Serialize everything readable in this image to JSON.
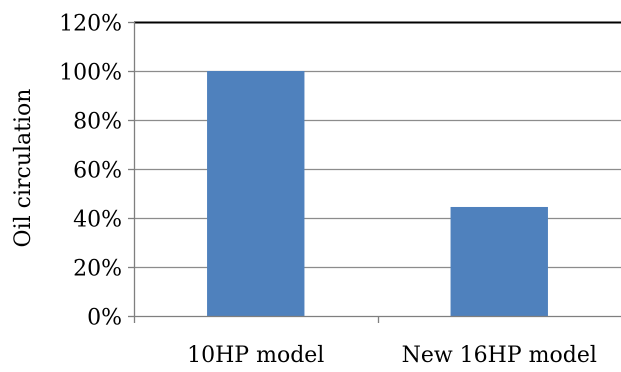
{
  "chart_data": {
    "type": "bar",
    "title": "",
    "xlabel": "",
    "ylabel": "Oil circulation",
    "categories": [
      "10HP model",
      "New 16HP model"
    ],
    "values": [
      100,
      44.5
    ],
    "value_unit": "%",
    "ylim": [
      0,
      120
    ],
    "yticks": [
      0,
      20,
      40,
      60,
      80,
      100,
      120
    ],
    "ytick_labels": [
      "0%",
      "20%",
      "40%",
      "60%",
      "80%",
      "100%",
      "120%"
    ],
    "grid": true,
    "legend": "none",
    "colors": {
      "bar": "#4f81bd",
      "grid": "#8c8c8c",
      "axis": "#7f7f7f",
      "top_border": "#000000"
    }
  }
}
